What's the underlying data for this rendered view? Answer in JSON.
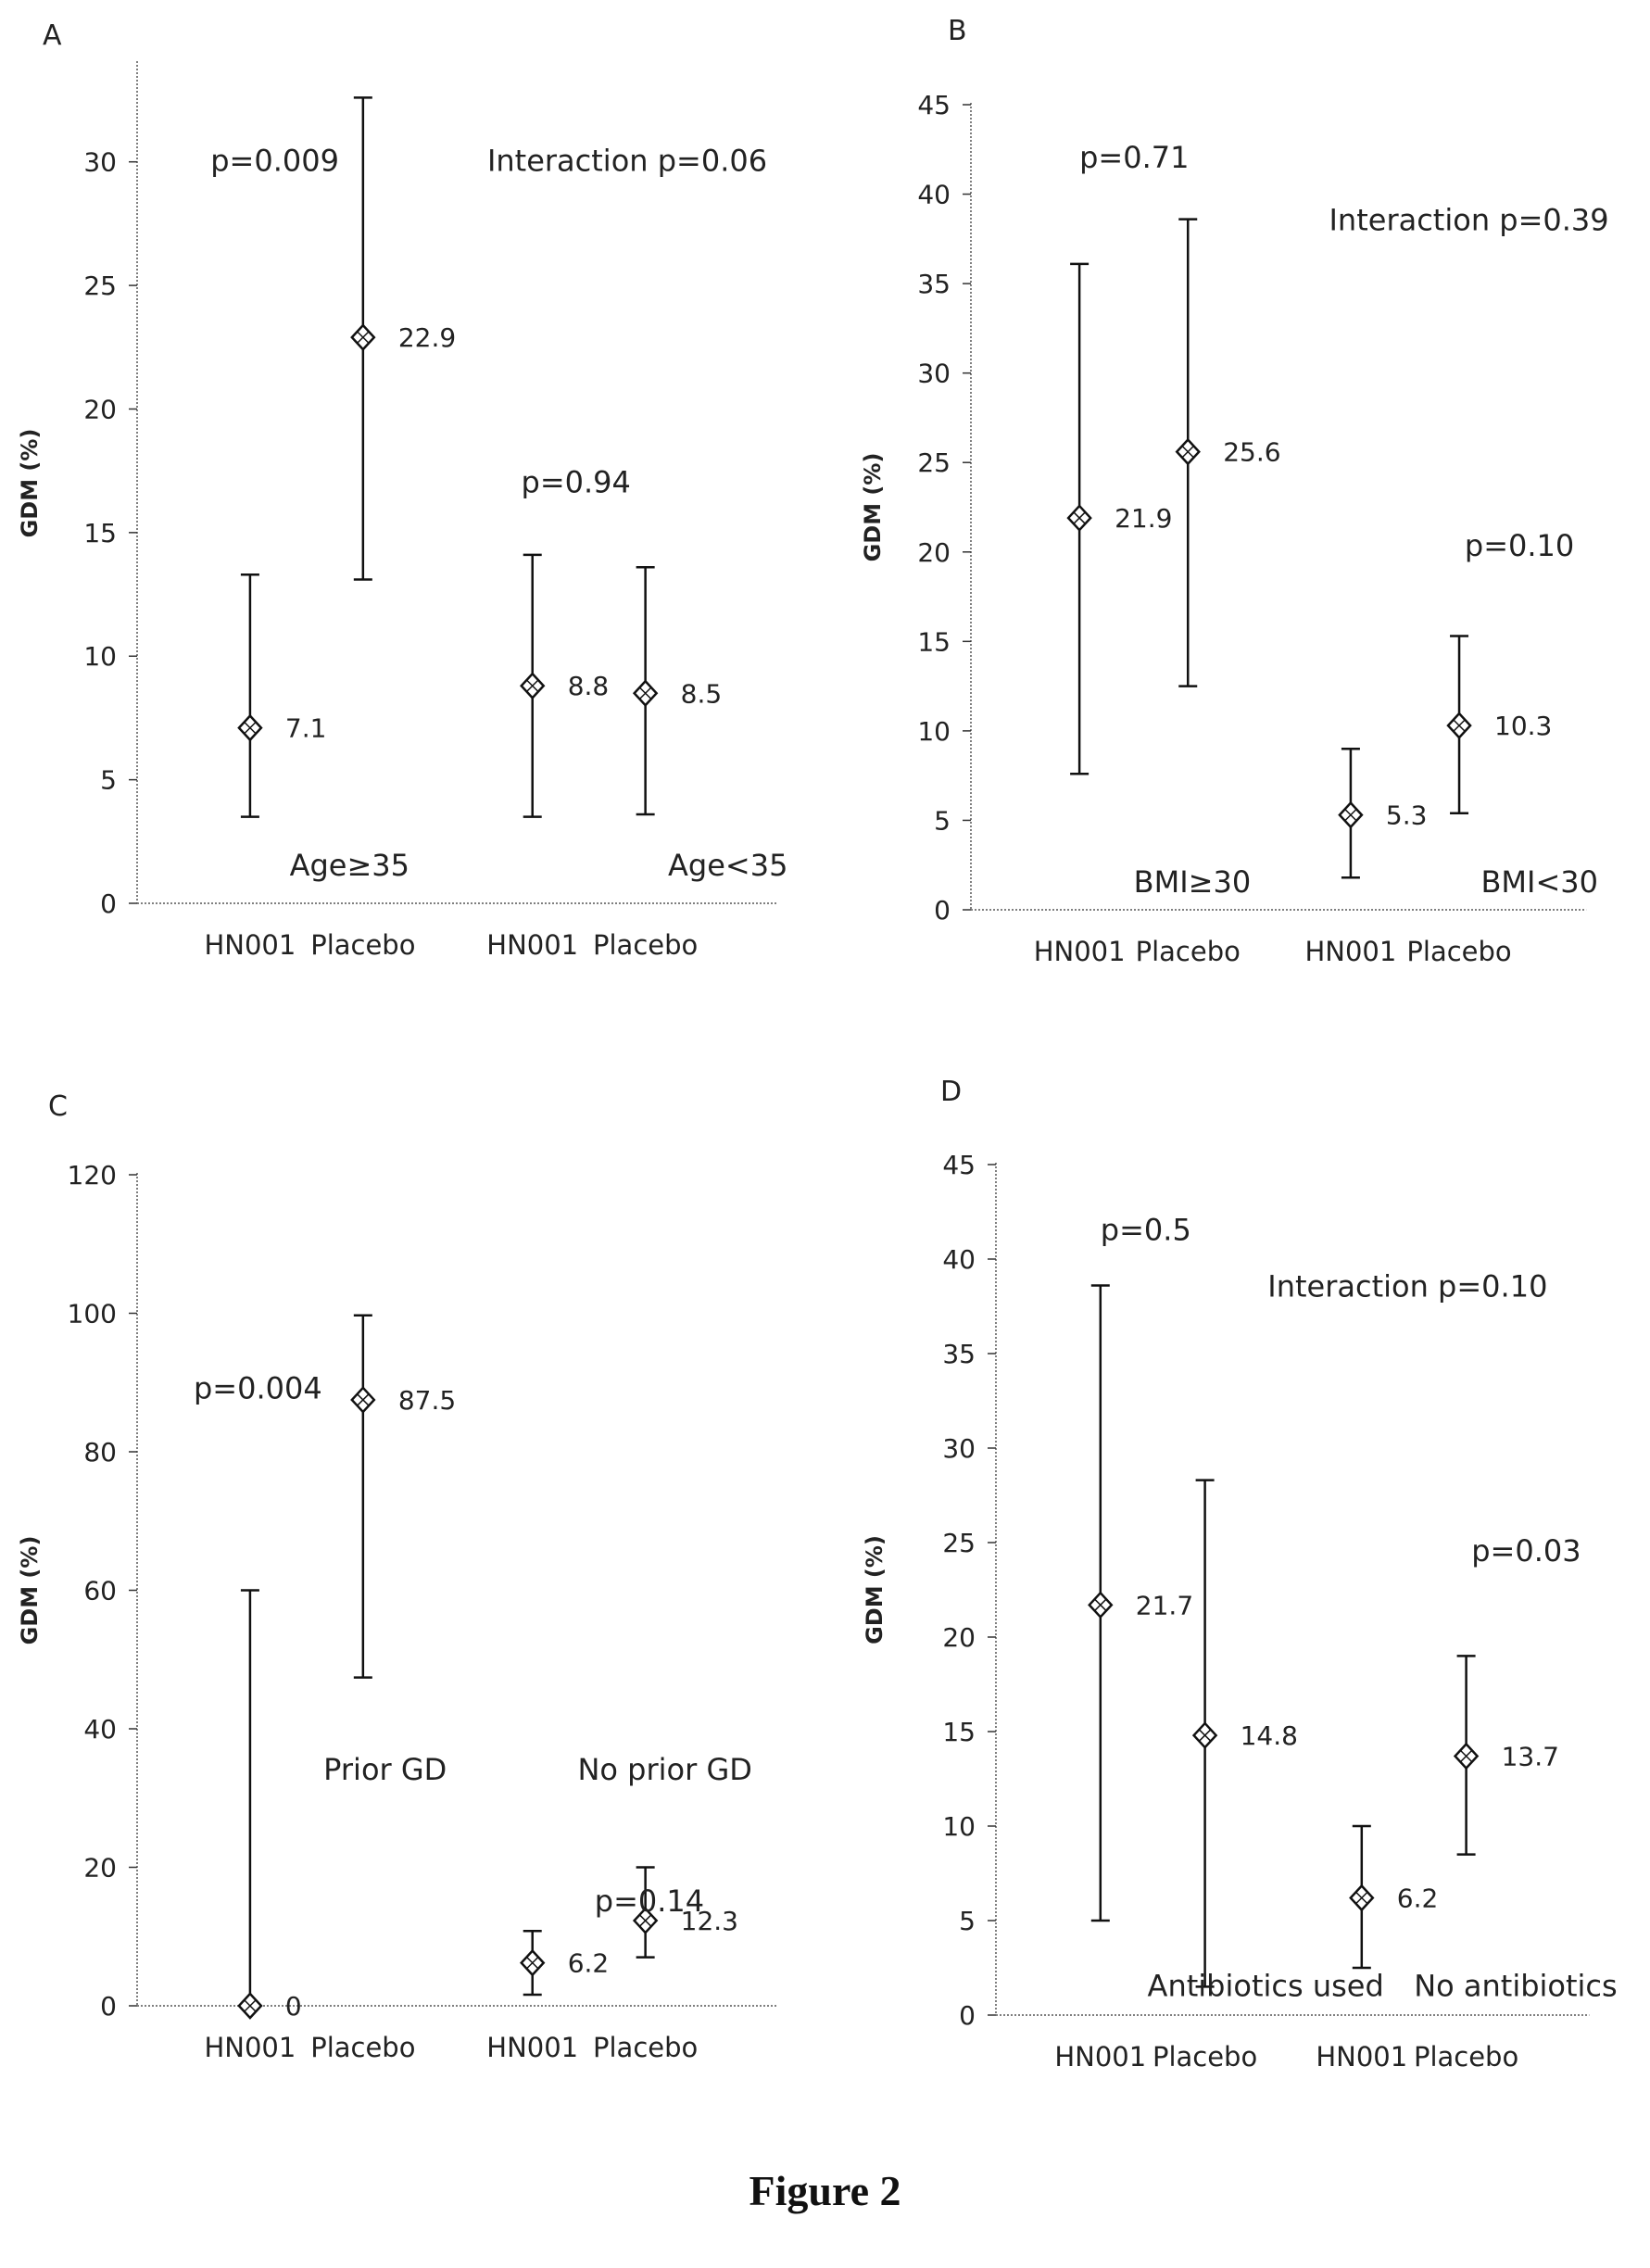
{
  "figure": {
    "caption": "Figure 2"
  },
  "chart_data": [
    {
      "panel_label": "A",
      "type": "scatter",
      "ylabel": "GDM (%)",
      "ylim": [
        0,
        34
      ],
      "yticks": [
        0,
        5,
        10,
        15,
        20,
        25,
        30
      ],
      "categories": [
        "HN001",
        "Placebo",
        "HN001",
        "Placebo"
      ],
      "points": [
        {
          "x": "HN001",
          "y": 7.1,
          "low": 3.5,
          "high": 13.3,
          "label": "7.1"
        },
        {
          "x": "Placebo",
          "y": 22.9,
          "low": 13.1,
          "high": 32.6,
          "label": "22.9"
        },
        {
          "x": "HN001",
          "y": 8.8,
          "low": 3.5,
          "high": 14.1,
          "label": "8.8"
        },
        {
          "x": "Placebo",
          "y": 8.5,
          "low": 3.6,
          "high": 13.6,
          "label": "8.5"
        }
      ],
      "annotations": [
        {
          "text": "p=0.009",
          "x": 0.65,
          "y": 30
        },
        {
          "text": "Interaction p=0.06",
          "x": 3.1,
          "y": 30
        },
        {
          "text": "p=0.94",
          "x": 3.4,
          "y": 17
        },
        {
          "text": "Age≥35",
          "x": 1.35,
          "y": 1.5
        },
        {
          "text": "Age<35",
          "x": 4.7,
          "y": 1.5
        }
      ]
    },
    {
      "panel_label": "B",
      "type": "scatter",
      "ylabel": "GDM (%)",
      "ylim": [
        0,
        45
      ],
      "yticks": [
        0,
        5,
        10,
        15,
        20,
        25,
        30,
        35,
        40,
        45
      ],
      "categories": [
        "HN001",
        "Placebo",
        "HN001",
        "Placebo"
      ],
      "points": [
        {
          "x": "HN001",
          "y": 21.9,
          "low": 7.6,
          "high": 36.1,
          "label": "21.9"
        },
        {
          "x": "Placebo",
          "y": 25.6,
          "low": 12.5,
          "high": 38.6,
          "label": "25.6"
        },
        {
          "x": "HN001",
          "y": 5.3,
          "low": 1.8,
          "high": 9.0,
          "label": "5.3"
        },
        {
          "x": "Placebo",
          "y": 10.3,
          "low": 5.4,
          "high": 15.3,
          "label": "10.3"
        }
      ],
      "annotations": [
        {
          "text": "p=0.71",
          "x": 1.0,
          "y": 42
        },
        {
          "text": "Interaction p=0.39",
          "x": 3.3,
          "y": 38.5
        },
        {
          "text": "p=0.10",
          "x": 4.55,
          "y": 20.3
        },
        {
          "text": "BMI≥30",
          "x": 1.5,
          "y": 1.5
        },
        {
          "text": "BMI<30",
          "x": 4.7,
          "y": 1.5
        }
      ]
    },
    {
      "panel_label": "C",
      "type": "scatter",
      "ylabel": "GDM (%)",
      "ylim": [
        0,
        120
      ],
      "yticks": [
        0,
        20,
        40,
        60,
        80,
        100,
        120
      ],
      "categories": [
        "HN001",
        "Placebo",
        "HN001",
        "Placebo"
      ],
      "points": [
        {
          "x": "HN001",
          "y": 0,
          "low": 0,
          "high": 60,
          "label": "0"
        },
        {
          "x": "Placebo",
          "y": 87.5,
          "low": 47.4,
          "high": 99.7,
          "label": "87.5"
        },
        {
          "x": "HN001",
          "y": 6.2,
          "low": 1.6,
          "high": 10.8,
          "label": "6.2"
        },
        {
          "x": "Placebo",
          "y": 12.3,
          "low": 7.0,
          "high": 20.0,
          "label": "12.3"
        }
      ],
      "annotations": [
        {
          "text": "p=0.004",
          "x": 0.5,
          "y": 89
        },
        {
          "text": "Prior GD",
          "x": 1.65,
          "y": 34
        },
        {
          "text": "No prior GD",
          "x": 3.9,
          "y": 34
        },
        {
          "text": "p=0.14",
          "x": 4.05,
          "y": 15
        }
      ]
    },
    {
      "panel_label": "D",
      "type": "scatter",
      "ylabel": "GDM (%)",
      "ylim": [
        0,
        45
      ],
      "yticks": [
        0,
        5,
        10,
        15,
        20,
        25,
        30,
        35,
        40,
        45
      ],
      "categories": [
        "HN001",
        "Placebo",
        "HN001",
        "Placebo"
      ],
      "points": [
        {
          "x": "HN001",
          "y": 21.7,
          "low": 5.0,
          "high": 38.6,
          "label": "21.7"
        },
        {
          "x": "Placebo",
          "y": 14.8,
          "low": 1.5,
          "high": 28.3,
          "label": "14.8"
        },
        {
          "x": "HN001",
          "y": 6.2,
          "low": 2.5,
          "high": 10.0,
          "label": "6.2"
        },
        {
          "x": "Placebo",
          "y": 13.7,
          "low": 8.5,
          "high": 19.0,
          "label": "13.7"
        }
      ],
      "annotations": [
        {
          "text": "p=0.5",
          "x": 1.0,
          "y": 41.5
        },
        {
          "text": "Interaction p=0.10",
          "x": 2.6,
          "y": 38.5
        },
        {
          "text": "p=0.03",
          "x": 4.55,
          "y": 24.5
        },
        {
          "text": "Antibiotics used",
          "x": 1.45,
          "y": 1.5
        },
        {
          "text": "No antibiotics",
          "x": 4.0,
          "y": 1.5
        }
      ]
    }
  ]
}
